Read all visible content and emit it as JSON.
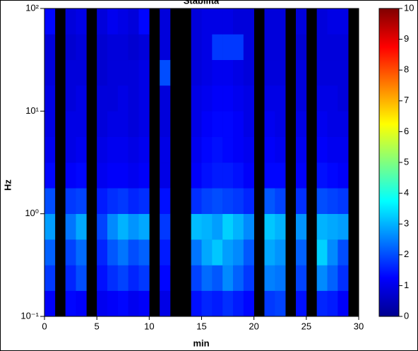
{
  "chart_data": {
    "type": "heatmap",
    "title": "Stabilità",
    "xlabel": "min",
    "ylabel": "Hz",
    "x": [
      0,
      1,
      2,
      3,
      4,
      5,
      6,
      7,
      8,
      9,
      10,
      11,
      12,
      13,
      14,
      15,
      16,
      17,
      18,
      19,
      20,
      21,
      22,
      23,
      24,
      25,
      26,
      27,
      28,
      29,
      30
    ],
    "y": [
      0.1,
      0.178,
      0.316,
      0.562,
      1,
      1.78,
      3.16,
      5.62,
      10,
      17.8,
      31.6,
      56.2,
      100
    ],
    "z": [
      [
        1.2,
        null,
        1.3,
        1.2,
        null,
        1.1,
        1.2,
        1.3,
        1.1,
        1.2,
        null,
        1.0,
        null,
        null,
        1.4,
        1.6,
        1.5,
        1.7,
        1.5,
        1.3,
        null,
        1.8,
        1.9,
        null,
        1.4,
        null,
        1.6,
        1.5,
        1.2,
        null
      ],
      [
        1.8,
        null,
        1.6,
        2.0,
        null,
        1.4,
        1.7,
        1.9,
        1.6,
        1.8,
        null,
        1.3,
        null,
        null,
        1.9,
        2.3,
        2.1,
        2.6,
        2.2,
        1.8,
        null,
        2.5,
        2.4,
        null,
        1.9,
        null,
        2.6,
        2.2,
        1.7,
        null
      ],
      [
        2.2,
        null,
        1.9,
        2.3,
        null,
        1.6,
        2.1,
        2.4,
        2.0,
        2.2,
        null,
        1.5,
        null,
        null,
        2.4,
        2.9,
        3.2,
        2.8,
        2.6,
        2.1,
        null,
        2.9,
        2.7,
        null,
        2.2,
        null,
        3.3,
        2.6,
        2.0,
        null
      ],
      [
        2.8,
        null,
        2.4,
        2.9,
        null,
        1.9,
        2.6,
        3.0,
        2.7,
        2.9,
        null,
        1.8,
        null,
        null,
        3.1,
        3.0,
        2.8,
        3.3,
        3.0,
        2.6,
        null,
        3.2,
        3.0,
        null,
        2.7,
        null,
        3.0,
        2.9,
        2.8,
        null
      ],
      [
        2.0,
        null,
        1.8,
        1.9,
        null,
        1.5,
        1.7,
        1.8,
        1.6,
        1.7,
        null,
        1.4,
        null,
        null,
        1.7,
        1.9,
        2.0,
        1.9,
        1.8,
        1.6,
        null,
        2.1,
        1.9,
        null,
        1.7,
        null,
        2.0,
        1.9,
        1.8,
        null
      ],
      [
        1.3,
        null,
        1.2,
        1.3,
        null,
        1.1,
        1.2,
        1.2,
        1.1,
        1.2,
        null,
        1.0,
        null,
        null,
        1.2,
        1.4,
        1.5,
        1.5,
        1.4,
        1.2,
        null,
        1.3,
        1.3,
        null,
        1.2,
        null,
        1.4,
        1.3,
        1.2,
        null
      ],
      [
        1.1,
        null,
        1.0,
        1.1,
        null,
        1.0,
        1.1,
        1.1,
        1.0,
        1.1,
        null,
        1.0,
        null,
        null,
        1.1,
        1.3,
        1.4,
        1.3,
        1.2,
        1.1,
        null,
        1.2,
        1.1,
        null,
        1.1,
        null,
        1.2,
        1.1,
        1.1,
        null
      ],
      [
        1.0,
        null,
        1.0,
        1.0,
        null,
        0.9,
        1.0,
        1.0,
        0.9,
        1.0,
        null,
        0.9,
        null,
        null,
        1.0,
        1.2,
        1.3,
        1.3,
        1.2,
        1.0,
        null,
        1.1,
        1.0,
        null,
        1.0,
        null,
        1.1,
        1.0,
        1.0,
        null
      ],
      [
        1.0,
        null,
        0.9,
        1.0,
        null,
        0.9,
        0.9,
        1.0,
        0.9,
        1.0,
        null,
        0.9,
        null,
        null,
        1.0,
        1.1,
        1.2,
        1.2,
        1.1,
        1.0,
        null,
        1.0,
        1.0,
        null,
        0.9,
        null,
        1.0,
        1.0,
        0.9,
        null
      ],
      [
        0.9,
        null,
        0.9,
        0.9,
        null,
        0.8,
        0.9,
        0.9,
        0.9,
        1.0,
        null,
        2.0,
        null,
        null,
        0.9,
        1.0,
        1.1,
        1.1,
        1.0,
        0.9,
        null,
        0.9,
        0.9,
        null,
        0.9,
        null,
        0.9,
        0.9,
        0.9,
        null
      ],
      [
        0.9,
        null,
        0.8,
        0.9,
        null,
        0.8,
        0.9,
        0.9,
        0.8,
        0.9,
        null,
        0.9,
        null,
        null,
        0.9,
        1.0,
        1.8,
        1.8,
        1.8,
        0.9,
        null,
        0.9,
        0.9,
        null,
        0.8,
        null,
        0.9,
        0.9,
        0.9,
        null
      ],
      [
        1.3,
        null,
        0.9,
        1.0,
        null,
        0.9,
        1.1,
        1.0,
        0.9,
        1.3,
        null,
        0.9,
        null,
        null,
        0.9,
        1.0,
        1.0,
        1.0,
        0.9,
        0.9,
        null,
        0.9,
        0.9,
        null,
        0.9,
        null,
        0.9,
        1.0,
        1.0,
        null
      ]
    ],
    "xlim": [
      0,
      30
    ],
    "xticks": [
      0,
      5,
      10,
      15,
      20,
      25,
      30
    ],
    "ylim": [
      0.1,
      100
    ],
    "log_y": true,
    "yticks": [
      {
        "value": 0.1,
        "label": "10⁻¹"
      },
      {
        "value": 1,
        "label": "10⁰"
      },
      {
        "value": 10,
        "label": "10¹"
      },
      {
        "value": 100,
        "label": "10²"
      }
    ],
    "clim": [
      0,
      10
    ],
    "cticks": [
      0,
      1,
      2,
      3,
      4,
      5,
      6,
      7,
      8,
      9,
      10
    ],
    "colormap": "jet"
  }
}
